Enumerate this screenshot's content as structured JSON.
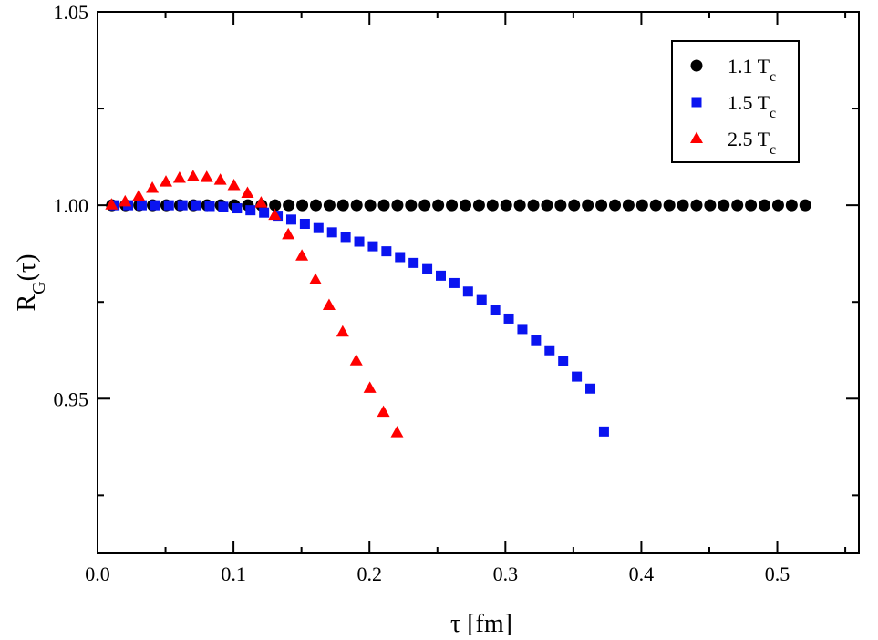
{
  "chart_data": {
    "type": "scatter",
    "xlabel": "τ [fm]",
    "ylabel": {
      "base": "R",
      "sub": "G",
      "rest": "(τ)"
    },
    "xlim": [
      0.0,
      0.56
    ],
    "ylim": [
      0.91,
      1.05
    ],
    "xticks": [
      {
        "value": 0.0,
        "label": "0.0"
      },
      {
        "value": 0.1,
        "label": "0.1"
      },
      {
        "value": 0.2,
        "label": "0.2"
      },
      {
        "value": 0.3,
        "label": "0.3"
      },
      {
        "value": 0.4,
        "label": "0.4"
      },
      {
        "value": 0.5,
        "label": "0.5"
      }
    ],
    "xminor": [
      0.05,
      0.15,
      0.25,
      0.35,
      0.45,
      0.55
    ],
    "yticks": [
      {
        "value": 0.95,
        "label": "0.95"
      },
      {
        "value": 1.0,
        "label": "1.00"
      },
      {
        "value": 1.05,
        "label": "1.05"
      }
    ],
    "yminor": [
      0.925,
      0.975,
      1.025
    ],
    "grid": false,
    "legend_position": "top-right",
    "series": [
      {
        "name": {
          "base": "1.1 T",
          "sub": "c"
        },
        "marker": "circle",
        "color": "#000000",
        "x": [
          0.0106,
          0.0206,
          0.0306,
          0.0406,
          0.0506,
          0.0606,
          0.0706,
          0.0806,
          0.0906,
          0.1006,
          0.1106,
          0.1206,
          0.1306,
          0.1406,
          0.1506,
          0.1606,
          0.1706,
          0.1806,
          0.1906,
          0.2006,
          0.2106,
          0.2206,
          0.2306,
          0.2406,
          0.2506,
          0.2606,
          0.2706,
          0.2806,
          0.2906,
          0.3006,
          0.3106,
          0.3206,
          0.3306,
          0.3406,
          0.3506,
          0.3606,
          0.3706,
          0.3806,
          0.3906,
          0.4006,
          0.4106,
          0.4206,
          0.4306,
          0.4406,
          0.4506,
          0.4606,
          0.4706,
          0.4806,
          0.4906,
          0.5006,
          0.5106,
          0.5206
        ],
        "y": [
          1.0,
          1.0,
          1.0,
          1.0,
          1.0,
          1.0,
          1.0,
          1.0,
          1.0,
          1.0,
          1.0,
          1.0,
          1.0,
          1.0,
          1.0,
          1.0,
          1.0,
          1.0,
          1.0,
          1.0,
          1.0,
          1.0,
          1.0,
          1.0,
          1.0,
          1.0,
          1.0,
          1.0,
          1.0,
          1.0,
          1.0,
          1.0,
          1.0,
          1.0,
          1.0,
          1.0,
          1.0,
          1.0,
          1.0,
          1.0,
          1.0,
          1.0,
          1.0,
          1.0,
          1.0,
          1.0,
          1.0,
          1.0,
          1.0,
          1.0,
          1.0,
          1.0
        ]
      },
      {
        "name": {
          "base": "1.5 T",
          "sub": "c"
        },
        "marker": "square",
        "color": "#0a14f0",
        "x": [
          0.0125,
          0.0225,
          0.0325,
          0.0425,
          0.0525,
          0.0625,
          0.0725,
          0.0825,
          0.0925,
          0.1025,
          0.1125,
          0.1225,
          0.1325,
          0.1425,
          0.1525,
          0.1625,
          0.1725,
          0.1825,
          0.1925,
          0.2025,
          0.2125,
          0.2225,
          0.2325,
          0.2425,
          0.2525,
          0.2625,
          0.2725,
          0.2825,
          0.2925,
          0.3025,
          0.3125,
          0.3225,
          0.3325,
          0.3425,
          0.3525,
          0.3625,
          0.3725
        ],
        "y": [
          1.0,
          1.0,
          1.0,
          1.0,
          1.0,
          1.0,
          1.0,
          0.9998,
          0.9996,
          0.9992,
          0.9987,
          0.9981,
          0.9973,
          0.9963,
          0.9952,
          0.9941,
          0.993,
          0.9918,
          0.9906,
          0.9894,
          0.9881,
          0.9866,
          0.9851,
          0.9835,
          0.9818,
          0.9799,
          0.9777,
          0.9755,
          0.973,
          0.9707,
          0.968,
          0.9651,
          0.9625,
          0.9597,
          0.9557,
          0.9526,
          0.9415
        ]
      },
      {
        "name": {
          "base": "2.5 T",
          "sub": "c"
        },
        "marker": "triangle",
        "color": "#ff0000",
        "x": [
          0.0103,
          0.0203,
          0.0303,
          0.0403,
          0.0503,
          0.0603,
          0.0703,
          0.0803,
          0.0903,
          0.1003,
          0.1103,
          0.1203,
          0.1303,
          0.1403,
          0.1503,
          0.1603,
          0.1703,
          0.1803,
          0.1903,
          0.2003,
          0.2103,
          0.2203
        ],
        "y": [
          1.0001,
          1.0009,
          1.0023,
          1.0044,
          1.006,
          1.007,
          1.0074,
          1.0072,
          1.0065,
          1.0051,
          1.0031,
          1.0006,
          0.9974,
          0.9924,
          0.9869,
          0.9807,
          0.9741,
          0.9672,
          0.9598,
          0.9527,
          0.9465,
          0.9412
        ]
      }
    ]
  }
}
